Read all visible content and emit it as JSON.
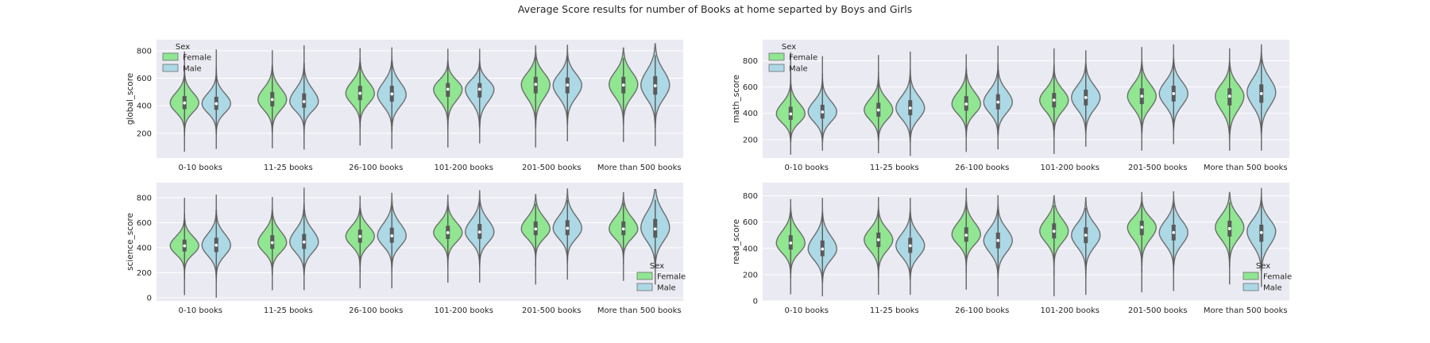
{
  "figure": {
    "title": "Average Score results for number of Books at home separted by Boys and Girls"
  },
  "colors": {
    "female": "#90e691",
    "male": "#add8e6",
    "panel_bg": "#eaeaf2",
    "grid": "#ffffff",
    "violin_edge": "#6e6e6e",
    "box": "#5a5a5a"
  },
  "chart_data": [
    {
      "type": "violin",
      "ylabel": "global_score",
      "categories": [
        "0-10 books",
        "11-25 books",
        "26-100 books",
        "101-200 books",
        "201-500 books",
        "More than 500 books"
      ],
      "yticks": [
        200,
        400,
        600,
        800
      ],
      "ylim": [
        20,
        880
      ],
      "legend": {
        "title": "Sex",
        "entries": [
          "Female",
          "Male"
        ],
        "position": "top-left"
      },
      "series": [
        {
          "name": "Female",
          "min": [
            70,
            95,
            115,
            100,
            100,
            140
          ],
          "q1": [
            375,
            395,
            440,
            465,
            490,
            490
          ],
          "median": [
            420,
            445,
            490,
            520,
            555,
            550
          ],
          "q3": [
            470,
            500,
            545,
            565,
            610,
            610
          ],
          "max": [
            790,
            800,
            815,
            810,
            835,
            820
          ],
          "mode": [
            420,
            445,
            490,
            520,
            555,
            555
          ]
        },
        {
          "name": "Male",
          "min": [
            90,
            85,
            90,
            130,
            145,
            110
          ],
          "q1": [
            370,
            385,
            430,
            460,
            490,
            480
          ],
          "median": [
            415,
            430,
            485,
            520,
            550,
            545
          ],
          "q3": [
            465,
            490,
            545,
            565,
            605,
            615
          ],
          "max": [
            805,
            835,
            820,
            810,
            840,
            850
          ],
          "mode": [
            415,
            430,
            480,
            520,
            550,
            550
          ]
        }
      ]
    },
    {
      "type": "violin",
      "ylabel": "math_score",
      "categories": [
        "0-10 books",
        "11-25 books",
        "26-100 books",
        "101-200 books",
        "201-500 books",
        "More than 500 books"
      ],
      "yticks": [
        200,
        400,
        600,
        800
      ],
      "ylim": [
        60,
        960
      ],
      "legend": {
        "title": "Sex",
        "entries": [
          "Female",
          "Male"
        ],
        "position": "top-left"
      },
      "series": [
        {
          "name": "Female",
          "min": [
            90,
            100,
            110,
            95,
            120,
            120
          ],
          "q1": [
            350,
            375,
            420,
            445,
            470,
            460
          ],
          "median": [
            395,
            425,
            470,
            500,
            530,
            530
          ],
          "q3": [
            450,
            480,
            530,
            555,
            590,
            590
          ],
          "max": [
            860,
            840,
            845,
            890,
            900,
            890
          ],
          "mode": [
            395,
            425,
            470,
            500,
            530,
            530
          ]
        },
        {
          "name": "Male",
          "min": [
            120,
            80,
            130,
            150,
            170,
            120
          ],
          "q1": [
            360,
            385,
            430,
            460,
            490,
            480
          ],
          "median": [
            410,
            440,
            485,
            520,
            550,
            550
          ],
          "q3": [
            465,
            500,
            545,
            580,
            610,
            620
          ],
          "max": [
            830,
            865,
            910,
            875,
            920,
            920
          ],
          "mode": [
            410,
            440,
            485,
            520,
            550,
            560
          ]
        }
      ]
    },
    {
      "type": "violin",
      "ylabel": "science_score",
      "categories": [
        "0-10 books",
        "11-25 books",
        "26-100 books",
        "101-200 books",
        "201-500 books",
        "More than 500 books"
      ],
      "yticks": [
        0,
        200,
        400,
        600,
        800
      ],
      "ylim": [
        -25,
        920
      ],
      "legend": {
        "title": "Sex",
        "entries": [
          "Female",
          "Male"
        ],
        "position": "lower-right"
      },
      "series": [
        {
          "name": "Female",
          "min": [
            25,
            65,
            80,
            125,
            110,
            140
          ],
          "q1": [
            370,
            390,
            440,
            470,
            500,
            500
          ],
          "median": [
            415,
            440,
            490,
            520,
            550,
            550
          ],
          "q3": [
            465,
            500,
            545,
            575,
            610,
            610
          ],
          "max": [
            795,
            800,
            810,
            820,
            825,
            840
          ],
          "mode": [
            415,
            440,
            490,
            520,
            550,
            550
          ]
        },
        {
          "name": "Male",
          "min": [
            5,
            65,
            80,
            125,
            150,
            110
          ],
          "q1": [
            365,
            390,
            440,
            470,
            500,
            480
          ],
          "median": [
            420,
            445,
            495,
            525,
            555,
            550
          ],
          "q3": [
            480,
            510,
            560,
            590,
            620,
            630
          ],
          "max": [
            820,
            875,
            835,
            855,
            870,
            865
          ],
          "mode": [
            420,
            445,
            495,
            525,
            555,
            560
          ]
        }
      ]
    },
    {
      "type": "violin",
      "ylabel": "read_score",
      "categories": [
        "0-10 books",
        "11-25 books",
        "26-100 books",
        "101-200 books",
        "201-500 books",
        "More than 500 books"
      ],
      "yticks": [
        0,
        200,
        400,
        600,
        800
      ],
      "ylim": [
        0,
        900
      ],
      "legend": {
        "title": "Sex",
        "entries": [
          "Female",
          "Male"
        ],
        "position": "lower-right"
      },
      "series": [
        {
          "name": "Female",
          "min": [
            55,
            50,
            90,
            40,
            70,
            130
          ],
          "q1": [
            390,
            410,
            450,
            475,
            500,
            490
          ],
          "median": [
            440,
            465,
            500,
            530,
            560,
            550
          ],
          "q3": [
            500,
            520,
            560,
            590,
            610,
            610
          ],
          "max": [
            770,
            785,
            855,
            800,
            825,
            825
          ],
          "mode": [
            440,
            465,
            505,
            530,
            560,
            560
          ]
        },
        {
          "name": "Male",
          "min": [
            40,
            50,
            40,
            50,
            80,
            110
          ],
          "q1": [
            340,
            365,
            400,
            440,
            460,
            450
          ],
          "median": [
            395,
            420,
            460,
            500,
            520,
            520
          ],
          "q3": [
            460,
            480,
            520,
            560,
            580,
            580
          ],
          "max": [
            780,
            780,
            800,
            785,
            830,
            855
          ],
          "mode": [
            395,
            420,
            460,
            500,
            520,
            530
          ]
        }
      ]
    }
  ]
}
